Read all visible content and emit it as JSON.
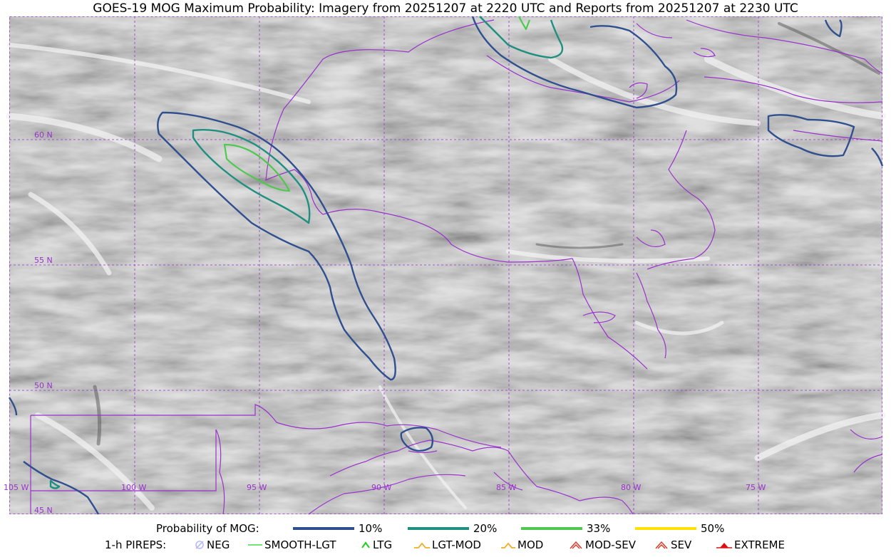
{
  "title": "GOES-19 MOG Maximum Probability: Imagery from 20251207 at 2220 UTC and Reports from 20251207 at 2230 UTC",
  "colors": {
    "boundary": "#9a32cd",
    "grid": "#9a32cd",
    "p10": "#2f4f8f",
    "p20": "#1f8f80",
    "p33": "#4ec94e",
    "p50": "#ffe000",
    "neg": "#b8b8ff",
    "smooth_lgt": "#44dd44",
    "ltg": "#22cc22",
    "lgt_mod": "#f0b020",
    "mod": "#f0b020",
    "mod_sev": "#e03020",
    "sev": "#e03020",
    "extreme": "#e01010"
  },
  "map": {
    "lat_labels": [
      "60 N",
      "55 N",
      "50 N",
      "45 N"
    ],
    "lon_labels": [
      "105 W",
      "100 W",
      "95 W",
      "90 W",
      "85 W",
      "80 W",
      "75 W"
    ]
  },
  "legend": {
    "probability_title": "Probability of MOG:",
    "levels": [
      "10%",
      "20%",
      "33%",
      "50%"
    ],
    "pireps_title": "1-h PIREPS:",
    "pireps": [
      {
        "label": "NEG",
        "icon": "neg-icon"
      },
      {
        "label": "SMOOTH-LGT",
        "icon": "line-icon"
      },
      {
        "label": "LTG",
        "icon": "caret-icon"
      },
      {
        "label": "LGT-MOD",
        "icon": "hat-icon"
      },
      {
        "label": "MOD",
        "icon": "hat-icon"
      },
      {
        "label": "MOD-SEV",
        "icon": "double-hat-icon"
      },
      {
        "label": "SEV",
        "icon": "double-hat-icon"
      },
      {
        "label": "EXTREME",
        "icon": "filled-hat-icon"
      }
    ]
  }
}
